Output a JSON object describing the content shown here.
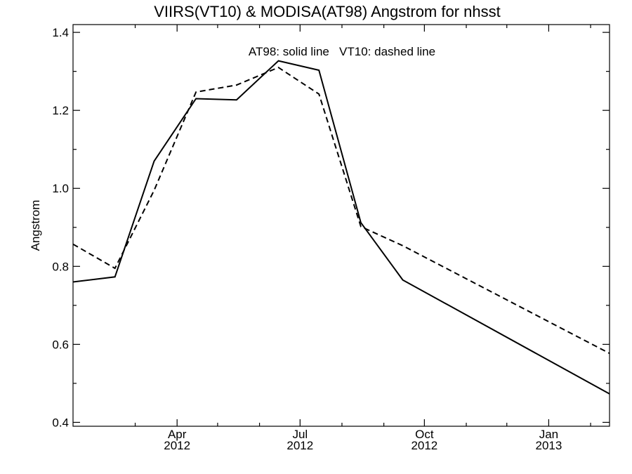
{
  "chart_data": {
    "type": "line",
    "title": "VIIRS(VT10) & MODISA(AT98)  Angstrom for nhsst",
    "annotation": "AT98: solid line   VT10: dashed line",
    "ylabel": "Angstrom",
    "xlabel": "",
    "ylim": [
      0.39,
      1.42
    ],
    "xlim": [
      "2012-01-15",
      "2013-02-15"
    ],
    "yticks": [
      0.4,
      0.6,
      0.8,
      1.0,
      1.2,
      1.4
    ],
    "ytick_labels": [
      "0.4",
      "0.6",
      "0.8",
      "1.0",
      "1.2",
      "1.4"
    ],
    "xticks": [
      {
        "date": "2012-04-01",
        "month": "Apr",
        "year": "2012"
      },
      {
        "date": "2012-07-01",
        "month": "Jul",
        "year": "2012"
      },
      {
        "date": "2012-10-01",
        "month": "Oct",
        "year": "2012"
      },
      {
        "date": "2013-01-01",
        "month": "Jan",
        "year": "2013"
      }
    ],
    "x_minor_ticks": [
      "2012-03-01",
      "2012-05-01",
      "2012-06-01",
      "2012-08-01",
      "2012-09-01",
      "2012-11-01",
      "2012-12-01",
      "2013-02-01"
    ],
    "y_minor_ticks": [
      0.5,
      0.7,
      0.9,
      1.1,
      1.3
    ],
    "series": [
      {
        "name": "AT98",
        "style": "solid",
        "color": "#000000",
        "points": [
          {
            "x": "2012-01-15",
            "y": 0.76
          },
          {
            "x": "2012-02-15",
            "y": 0.773
          },
          {
            "x": "2012-03-15",
            "y": 1.07
          },
          {
            "x": "2012-04-15",
            "y": 1.23
          },
          {
            "x": "2012-05-15",
            "y": 1.227
          },
          {
            "x": "2012-06-15",
            "y": 1.327
          },
          {
            "x": "2012-07-15",
            "y": 1.303
          },
          {
            "x": "2012-08-15",
            "y": 0.912
          },
          {
            "x": "2012-09-15",
            "y": 0.765
          },
          {
            "x": "2013-02-15",
            "y": 0.473
          }
        ]
      },
      {
        "name": "VT10",
        "style": "dashed",
        "color": "#000000",
        "points": [
          {
            "x": "2012-01-15",
            "y": 0.857
          },
          {
            "x": "2012-02-15",
            "y": 0.795
          },
          {
            "x": "2012-03-15",
            "y": 0.995
          },
          {
            "x": "2012-04-15",
            "y": 1.247
          },
          {
            "x": "2012-05-15",
            "y": 1.265
          },
          {
            "x": "2012-06-15",
            "y": 1.31
          },
          {
            "x": "2012-07-15",
            "y": 1.242
          },
          {
            "x": "2012-08-15",
            "y": 0.902
          },
          {
            "x": "2012-09-15",
            "y": 0.853
          },
          {
            "x": "2013-02-15",
            "y": 0.577
          }
        ]
      }
    ],
    "grid": false,
    "legend": "none"
  }
}
